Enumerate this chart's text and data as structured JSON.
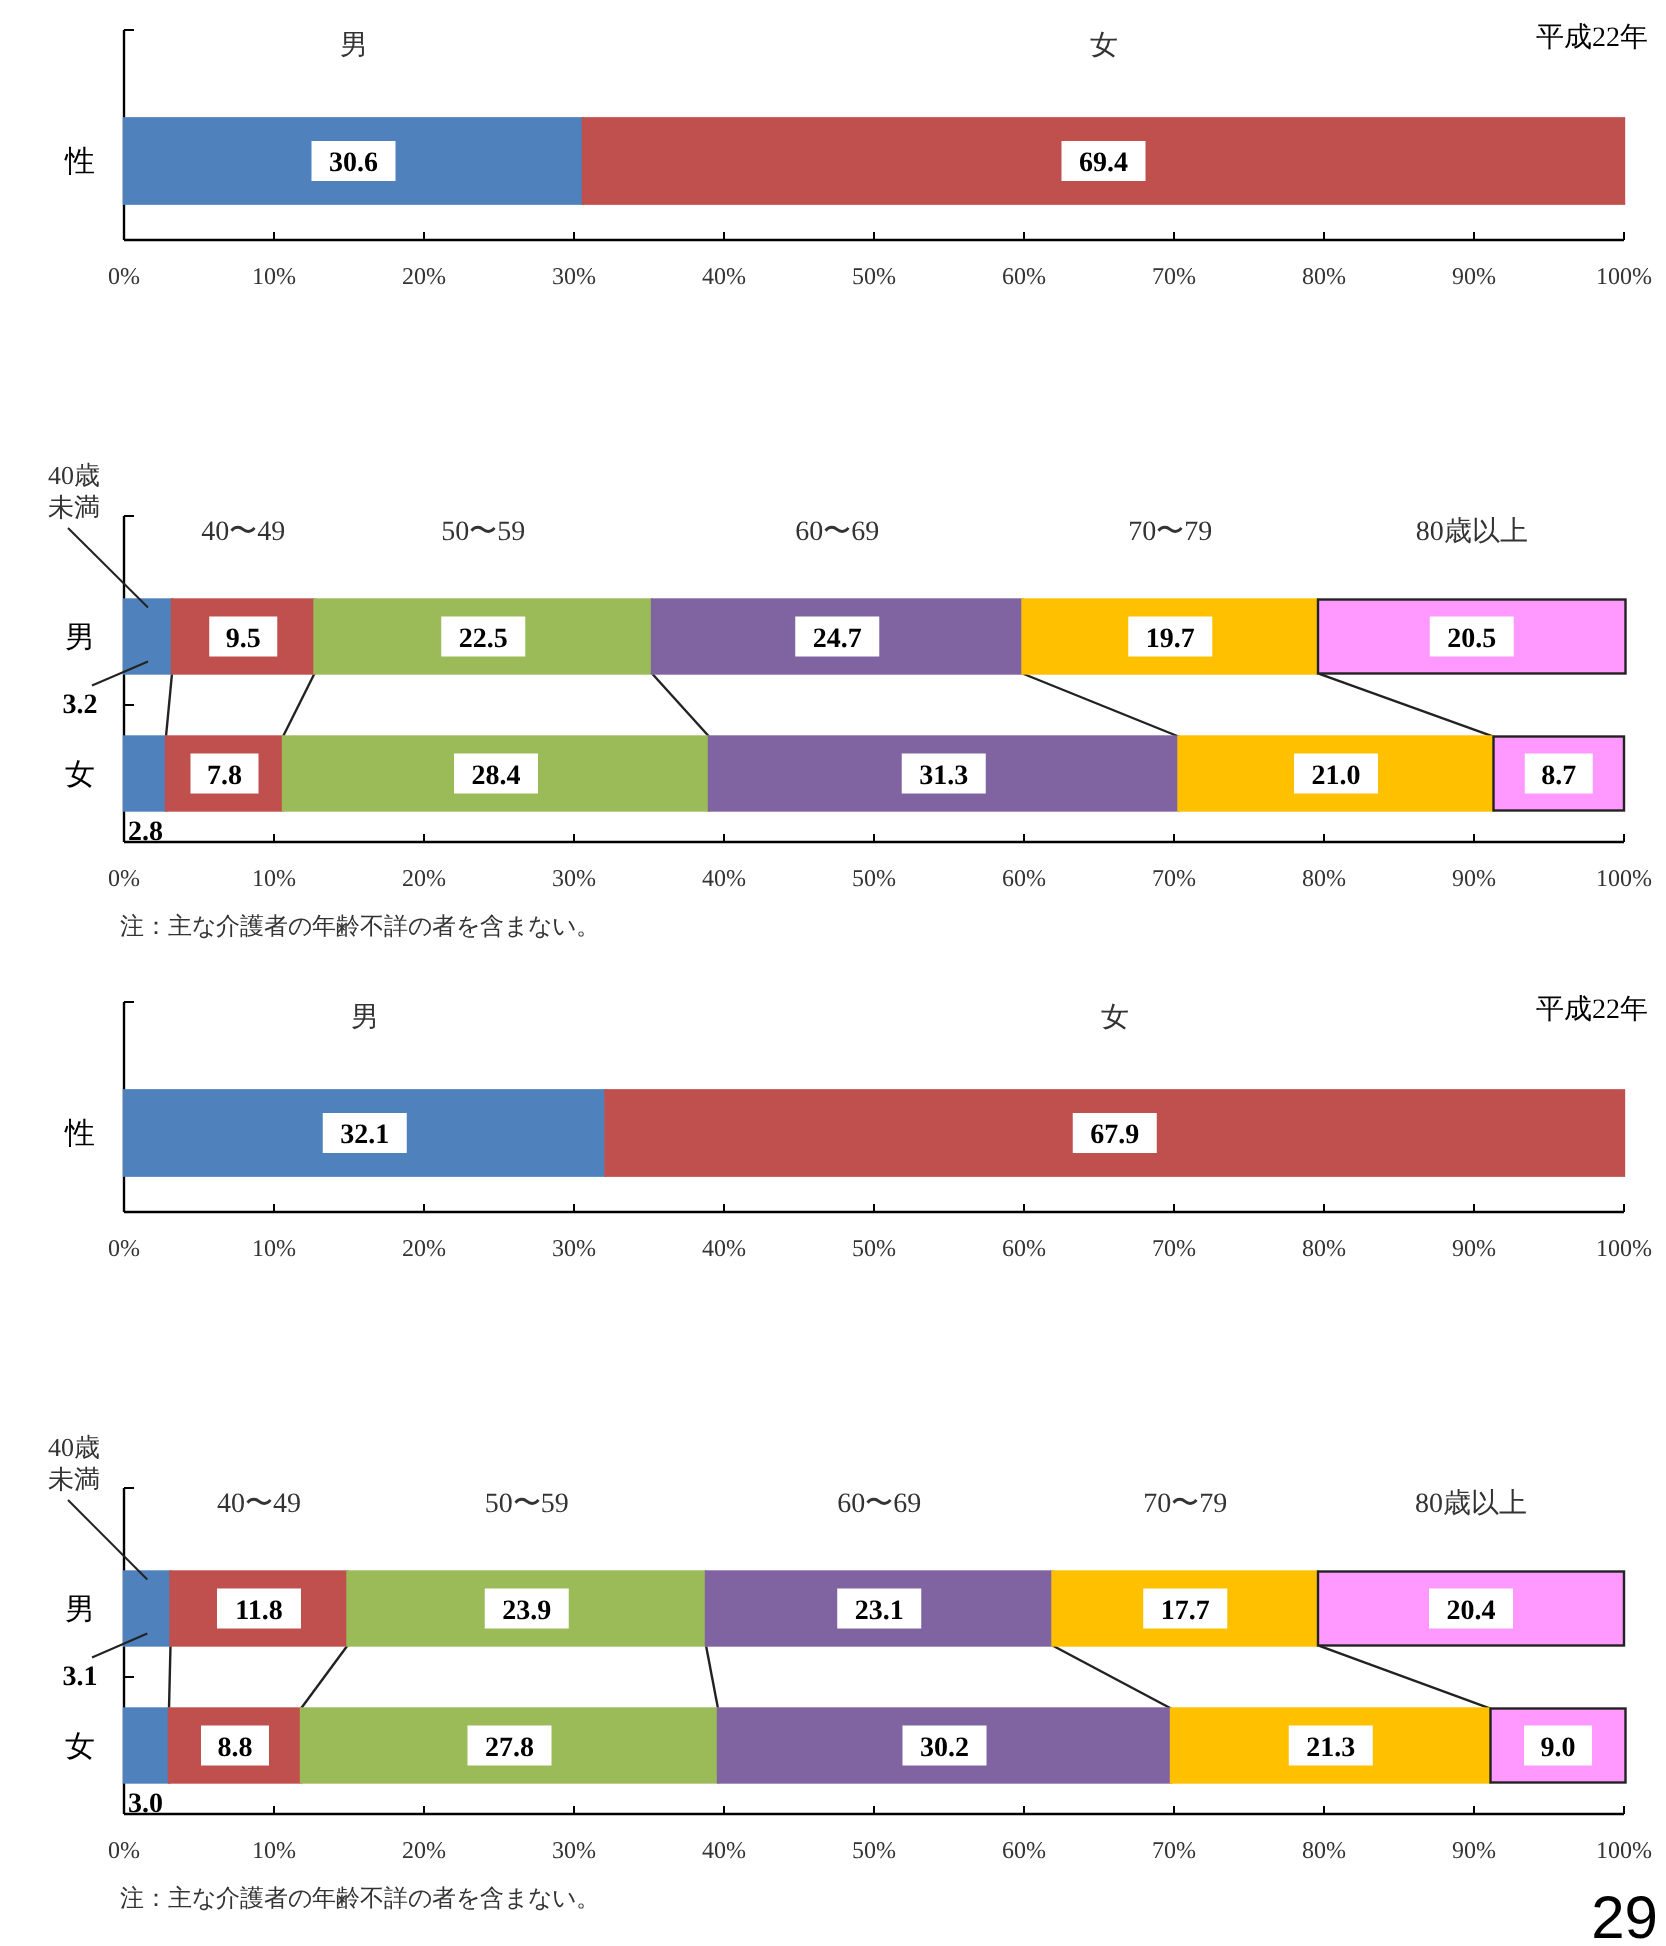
{
  "chart_data": [
    {
      "type": "bar",
      "orientation": "horizontal",
      "stacked": true,
      "subtitle": "平成22年",
      "categories": [
        "性"
      ],
      "series": [
        {
          "name": "男",
          "color": "#4f81bd",
          "values": [
            30.6
          ],
          "value_labels": [
            "30.6"
          ]
        },
        {
          "name": "女",
          "color": "#c0504d",
          "values": [
            69.4
          ],
          "value_labels": [
            "69.4"
          ]
        }
      ],
      "xlim": [
        0,
        100
      ],
      "xticks": [
        {
          "value": 0,
          "label": "0%"
        },
        {
          "value": 10,
          "label": "10%"
        },
        {
          "value": 20,
          "label": "20%"
        },
        {
          "value": 30,
          "label": "30%"
        },
        {
          "value": 40,
          "label": "40%"
        },
        {
          "value": 50,
          "label": "50%"
        },
        {
          "value": 60,
          "label": "60%"
        },
        {
          "value": 70,
          "label": "70%"
        },
        {
          "value": 80,
          "label": "80%"
        },
        {
          "value": 90,
          "label": "90%"
        },
        {
          "value": 100,
          "label": "100%"
        }
      ]
    },
    {
      "type": "bar",
      "orientation": "horizontal",
      "stacked": true,
      "categories": [
        "男",
        "女"
      ],
      "series": [
        {
          "name": "40歳未満",
          "color": "#4f81bd",
          "values": [
            3.2,
            2.8
          ],
          "value_labels": [
            "3.2",
            "2.8"
          ]
        },
        {
          "name": "40〜49",
          "color": "#c0504d",
          "values": [
            9.5,
            7.8
          ],
          "value_labels": [
            "9.5",
            "7.8"
          ]
        },
        {
          "name": "50〜59",
          "color": "#9bbb59",
          "values": [
            22.5,
            28.4
          ],
          "value_labels": [
            "22.5",
            "28.4"
          ]
        },
        {
          "name": "60〜69",
          "color": "#8064a2",
          "values": [
            24.7,
            31.3
          ],
          "value_labels": [
            "24.7",
            "31.3"
          ]
        },
        {
          "name": "70〜79",
          "color": "#ffc000",
          "values": [
            19.7,
            21.0
          ],
          "value_labels": [
            "19.7",
            "21.0"
          ]
        },
        {
          "name": "80歳以上",
          "color": "#ff99ff",
          "values": [
            20.5,
            8.7
          ],
          "value_labels": [
            "20.5",
            "8.7"
          ]
        }
      ],
      "xlim": [
        0,
        100
      ],
      "xticks": [
        {
          "value": 0,
          "label": "0%"
        },
        {
          "value": 10,
          "label": "10%"
        },
        {
          "value": 20,
          "label": "20%"
        },
        {
          "value": 30,
          "label": "30%"
        },
        {
          "value": 40,
          "label": "40%"
        },
        {
          "value": 50,
          "label": "50%"
        },
        {
          "value": 60,
          "label": "60%"
        },
        {
          "value": 70,
          "label": "70%"
        },
        {
          "value": 80,
          "label": "80%"
        },
        {
          "value": 90,
          "label": "90%"
        },
        {
          "value": 100,
          "label": "100%"
        }
      ],
      "annotations": [
        "注：主な介護者の年齢不詳の者を含まない。"
      ]
    },
    {
      "type": "bar",
      "orientation": "horizontal",
      "stacked": true,
      "subtitle": "平成22年",
      "categories": [
        "性"
      ],
      "series": [
        {
          "name": "男",
          "color": "#4f81bd",
          "values": [
            32.1
          ],
          "value_labels": [
            "32.1"
          ]
        },
        {
          "name": "女",
          "color": "#c0504d",
          "values": [
            67.9
          ],
          "value_labels": [
            "67.9"
          ]
        }
      ],
      "xlim": [
        0,
        100
      ],
      "xticks": [
        {
          "value": 0,
          "label": "0%"
        },
        {
          "value": 10,
          "label": "10%"
        },
        {
          "value": 20,
          "label": "20%"
        },
        {
          "value": 30,
          "label": "30%"
        },
        {
          "value": 40,
          "label": "40%"
        },
        {
          "value": 50,
          "label": "50%"
        },
        {
          "value": 60,
          "label": "60%"
        },
        {
          "value": 70,
          "label": "70%"
        },
        {
          "value": 80,
          "label": "80%"
        },
        {
          "value": 90,
          "label": "90%"
        },
        {
          "value": 100,
          "label": "100%"
        }
      ]
    },
    {
      "type": "bar",
      "orientation": "horizontal",
      "stacked": true,
      "categories": [
        "男",
        "女"
      ],
      "series": [
        {
          "name": "40歳未満",
          "color": "#4f81bd",
          "values": [
            3.1,
            3.0
          ],
          "value_labels": [
            "3.1",
            "3.0"
          ]
        },
        {
          "name": "40〜49",
          "color": "#c0504d",
          "values": [
            11.8,
            8.8
          ],
          "value_labels": [
            "11.8",
            "8.8"
          ]
        },
        {
          "name": "50〜59",
          "color": "#9bbb59",
          "values": [
            23.9,
            27.8
          ],
          "value_labels": [
            "23.9",
            "27.8"
          ]
        },
        {
          "name": "60〜69",
          "color": "#8064a2",
          "values": [
            23.1,
            30.2
          ],
          "value_labels": [
            "23.1",
            "30.2"
          ]
        },
        {
          "name": "70〜79",
          "color": "#ffc000",
          "values": [
            17.7,
            21.3
          ],
          "value_labels": [
            "17.7",
            "21.3"
          ]
        },
        {
          "name": "80歳以上",
          "color": "#ff99ff",
          "values": [
            20.4,
            9.0
          ],
          "value_labels": [
            "20.4",
            "9.0"
          ]
        }
      ],
      "xlim": [
        0,
        100
      ],
      "xticks": [
        {
          "value": 0,
          "label": "0%"
        },
        {
          "value": 10,
          "label": "10%"
        },
        {
          "value": 20,
          "label": "20%"
        },
        {
          "value": 30,
          "label": "30%"
        },
        {
          "value": 40,
          "label": "40%"
        },
        {
          "value": 50,
          "label": "50%"
        },
        {
          "value": 60,
          "label": "60%"
        },
        {
          "value": 70,
          "label": "70%"
        },
        {
          "value": 80,
          "label": "80%"
        },
        {
          "value": 90,
          "label": "90%"
        },
        {
          "value": 100,
          "label": "100%"
        }
      ],
      "annotations": [
        "注：主な介護者の年齢不詳の者を含まない。",
        "29"
      ]
    }
  ]
}
